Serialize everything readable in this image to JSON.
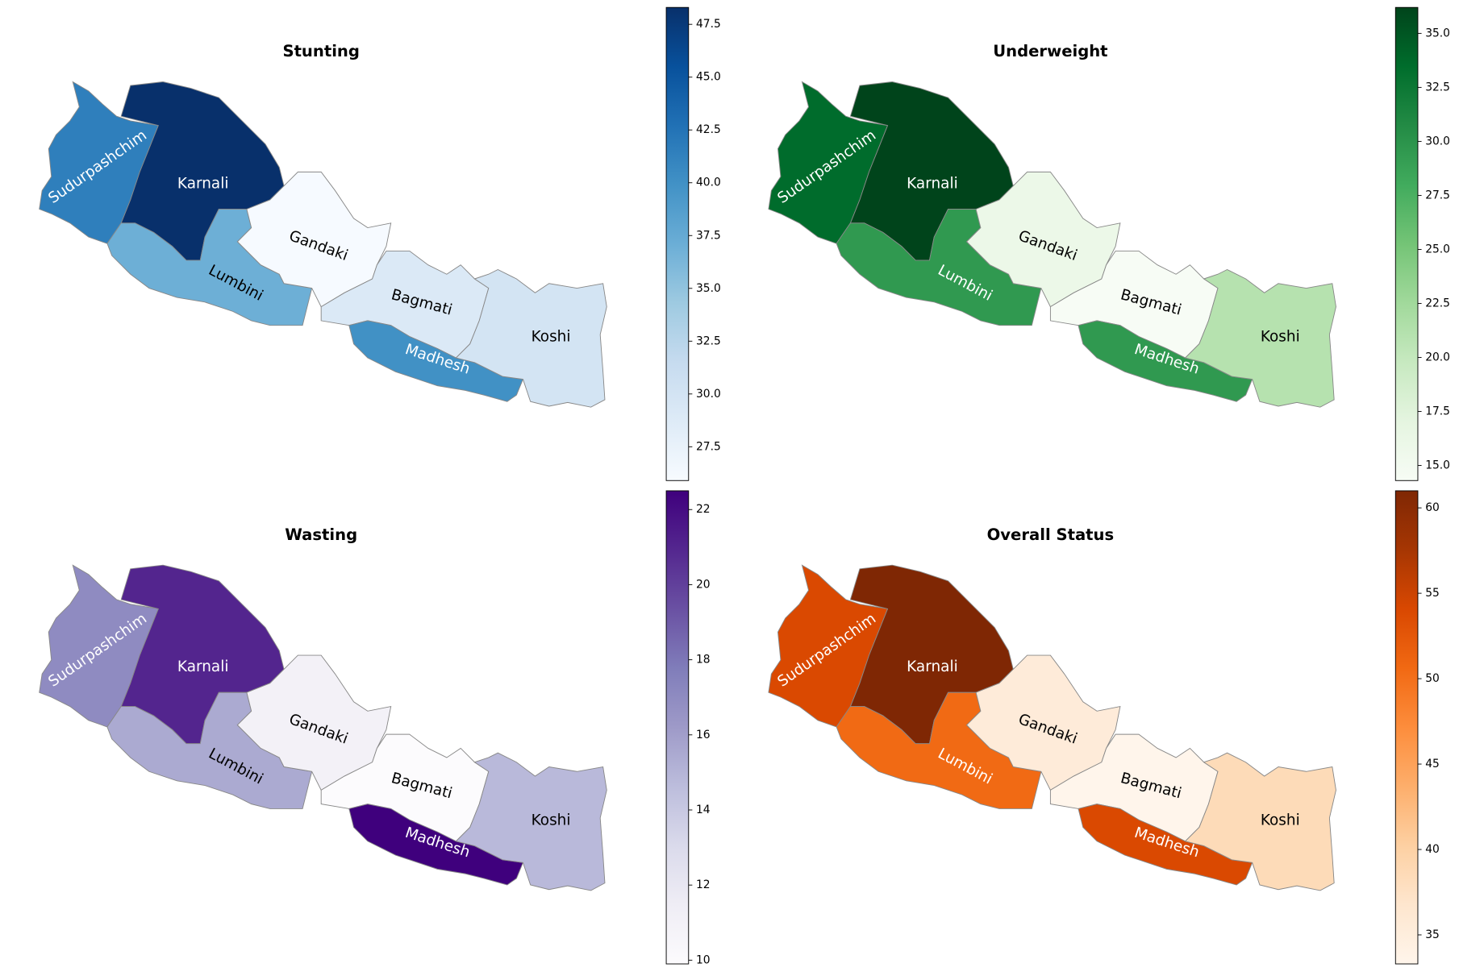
{
  "chart_data": [
    {
      "type": "choropleth",
      "title": "Stunting",
      "categories": [
        "Sudurpashchim",
        "Karnali",
        "Lumbini",
        "Gandaki",
        "Bagmati",
        "Madhesh",
        "Koshi"
      ],
      "values": [
        41.5,
        48.3,
        37,
        26,
        29,
        40,
        30
      ],
      "colormap": [
        "#f7fbff",
        "#deebf7",
        "#c6dbef",
        "#9ecae1",
        "#6baed6",
        "#4292c6",
        "#2171b5",
        "#08519c",
        "#08306b"
      ],
      "ylim": [
        25.9,
        48.3
      ],
      "yticks": [
        27.5,
        {
          "value": 30,
          "label": "30.0"
        },
        32.5,
        {
          "value": 35,
          "label": "35.0"
        },
        37.5,
        {
          "value": 40,
          "label": "40.0"
        },
        42.5,
        {
          "value": 45,
          "label": "45.0"
        },
        47.5
      ]
    },
    {
      "type": "choropleth",
      "title": "Underweight",
      "categories": [
        "Sudurpashchim",
        "Karnali",
        "Lumbini",
        "Gandaki",
        "Bagmati",
        "Madhesh",
        "Koshi"
      ],
      "values": [
        33.5,
        36.2,
        29.5,
        16,
        14.3,
        29.5,
        21
      ],
      "colormap": [
        "#f7fcf5",
        "#e5f5e0",
        "#c7e9c0",
        "#a1d99b",
        "#74c476",
        "#41ab5d",
        "#238b45",
        "#006d2c",
        "#00441b"
      ],
      "ylim": [
        14.3,
        36.2
      ],
      "yticks": [
        {
          "value": 15,
          "label": "15.0"
        },
        17.5,
        {
          "value": 20,
          "label": "20.0"
        },
        22.5,
        {
          "value": 25,
          "label": "25.0"
        },
        27.5,
        {
          "value": 30,
          "label": "30.0"
        },
        32.5,
        {
          "value": 35,
          "label": "35.0"
        }
      ]
    },
    {
      "type": "choropleth",
      "title": "Wasting",
      "categories": [
        "Sudurpashchim",
        "Karnali",
        "Lumbini",
        "Gandaki",
        "Bagmati",
        "Madhesh",
        "Koshi"
      ],
      "values": [
        17,
        21,
        15.5,
        11,
        9.9,
        22.5,
        14.8
      ],
      "colormap": [
        "#fcfbfd",
        "#efedf5",
        "#dadaeb",
        "#bcbddc",
        "#9e9ac8",
        "#807dba",
        "#6a51a3",
        "#54278f",
        "#3f007d"
      ],
      "ylim": [
        9.9,
        22.5
      ],
      "yticks": [
        10,
        12,
        14,
        16,
        18,
        20,
        22
      ]
    },
    {
      "type": "choropleth",
      "title": "Overall Status",
      "categories": [
        "Sudurpashchim",
        "Karnali",
        "Lumbini",
        "Gandaki",
        "Bagmati",
        "Madhesh",
        "Koshi"
      ],
      "values": [
        54,
        61,
        50.5,
        35.5,
        33.3,
        54,
        38.5
      ],
      "colormap": [
        "#fff5eb",
        "#fee6ce",
        "#fdd0a2",
        "#fdae6b",
        "#fd8d3c",
        "#f16913",
        "#d94801",
        "#a63603",
        "#7f2704"
      ],
      "ylim": [
        33.3,
        61
      ],
      "yticks": [
        35,
        40,
        45,
        50,
        55,
        60
      ]
    }
  ]
}
